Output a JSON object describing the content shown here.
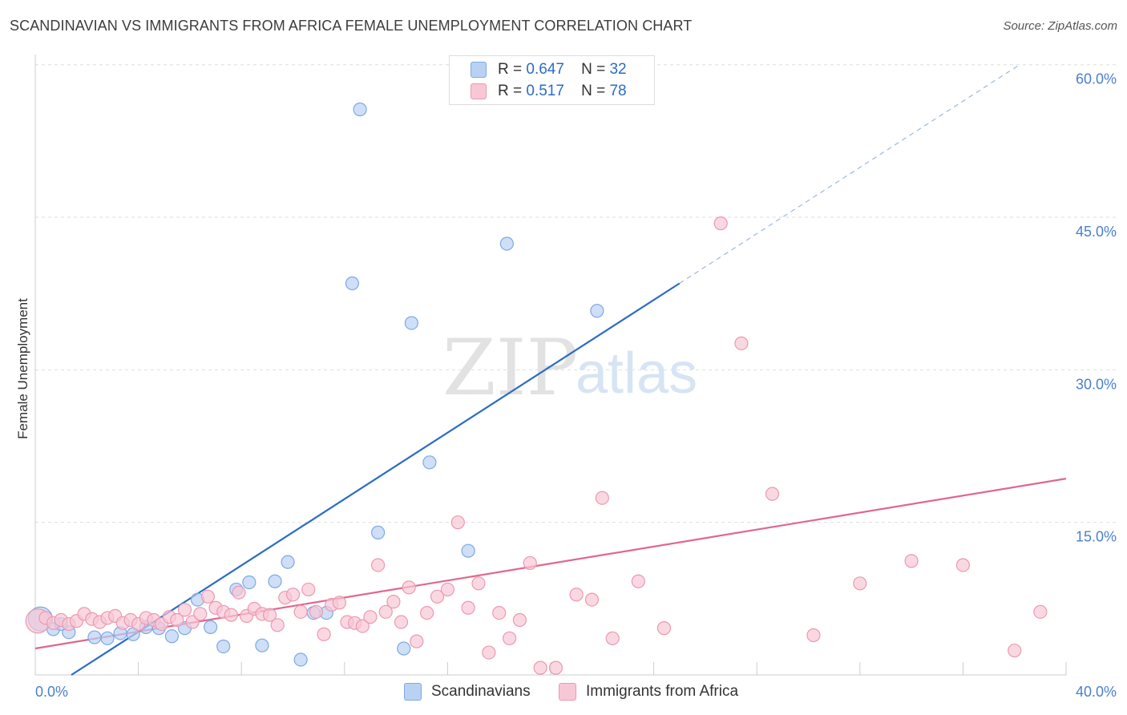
{
  "title": "SCANDINAVIAN VS IMMIGRANTS FROM AFRICA FEMALE UNEMPLOYMENT CORRELATION CHART",
  "source": "Source: ZipAtlas.com",
  "watermark": {
    "zip": "ZIP",
    "atlas": "atlas"
  },
  "colors": {
    "blue_fill": "#b9d2f3",
    "blue_stroke": "#7ea9e3",
    "blue_line": "#2b6cc4",
    "pink_fill": "#f8c7d6",
    "pink_stroke": "#ec98b2",
    "pink_line": "#e0678f",
    "grid": "#dedede",
    "tick_text": "#4a7fd0"
  },
  "legend": {
    "rows": [
      {
        "r_label": "R =",
        "r_value": "0.647",
        "n_label": "N =",
        "n_value": "32"
      },
      {
        "r_label": "R =",
        "r_value": "0.517",
        "n_label": "N =",
        "n_value": "78"
      }
    ]
  },
  "chart_data": {
    "type": "scatter",
    "title": "SCANDINAVIAN VS IMMIGRANTS FROM AFRICA FEMALE UNEMPLOYMENT CORRELATION CHART",
    "xlabel": "",
    "ylabel": "Female Unemployment",
    "xlim": [
      0,
      40
    ],
    "ylim": [
      0,
      61
    ],
    "x_tick_labels": [
      "0.0%",
      "40.0%"
    ],
    "y_tick_labels": [
      "15.0%",
      "30.0%",
      "45.0%",
      "60.0%"
    ],
    "y_ticks": [
      15,
      30,
      45,
      60
    ],
    "x_grid_ticks": [
      0,
      4,
      8,
      12,
      16,
      20,
      24,
      28,
      32,
      36,
      40
    ],
    "series": [
      {
        "name": "Scandinavians",
        "color": "#b9d2f3",
        "points": [
          [
            0.2,
            5.5
          ],
          [
            0.7,
            4.5
          ],
          [
            1.3,
            4.2
          ],
          [
            2.3,
            3.7
          ],
          [
            2.8,
            3.6
          ],
          [
            3.3,
            4.1
          ],
          [
            3.8,
            4.0
          ],
          [
            4.3,
            4.7
          ],
          [
            4.8,
            4.6
          ],
          [
            5.3,
            3.8
          ],
          [
            5.8,
            4.6
          ],
          [
            6.3,
            7.4
          ],
          [
            6.8,
            4.7
          ],
          [
            7.3,
            2.8
          ],
          [
            7.8,
            8.4
          ],
          [
            8.3,
            9.1
          ],
          [
            8.8,
            2.9
          ],
          [
            9.3,
            9.2
          ],
          [
            9.8,
            11.1
          ],
          [
            10.3,
            1.5
          ],
          [
            10.8,
            6.1
          ],
          [
            11.3,
            6.1
          ],
          [
            12.3,
            38.5
          ],
          [
            12.6,
            55.6
          ],
          [
            13.3,
            14.0
          ],
          [
            14.3,
            2.6
          ],
          [
            14.6,
            34.6
          ],
          [
            15.3,
            20.9
          ],
          [
            16.8,
            12.2
          ],
          [
            18.3,
            42.4
          ],
          [
            21.8,
            35.8
          ],
          [
            1.0,
            5.0
          ]
        ]
      },
      {
        "name": "Immigrants from Africa",
        "color": "#f8c7d6",
        "points": [
          [
            0.1,
            5.3
          ],
          [
            0.4,
            5.6
          ],
          [
            0.7,
            5.1
          ],
          [
            1.0,
            5.4
          ],
          [
            1.3,
            5.0
          ],
          [
            1.6,
            5.3
          ],
          [
            1.9,
            6.0
          ],
          [
            2.2,
            5.5
          ],
          [
            2.5,
            5.2
          ],
          [
            2.8,
            5.6
          ],
          [
            3.1,
            5.8
          ],
          [
            3.4,
            5.1
          ],
          [
            3.7,
            5.4
          ],
          [
            4.0,
            5.0
          ],
          [
            4.3,
            5.6
          ],
          [
            4.6,
            5.4
          ],
          [
            4.9,
            5.0
          ],
          [
            5.2,
            5.7
          ],
          [
            5.5,
            5.4
          ],
          [
            5.8,
            6.4
          ],
          [
            6.1,
            5.2
          ],
          [
            6.4,
            6.0
          ],
          [
            6.7,
            7.7
          ],
          [
            7.0,
            6.6
          ],
          [
            7.3,
            6.2
          ],
          [
            7.6,
            5.9
          ],
          [
            7.9,
            8.1
          ],
          [
            8.2,
            5.8
          ],
          [
            8.5,
            6.5
          ],
          [
            8.8,
            6.0
          ],
          [
            9.1,
            5.9
          ],
          [
            9.4,
            4.9
          ],
          [
            9.7,
            7.6
          ],
          [
            10.0,
            7.9
          ],
          [
            10.3,
            6.2
          ],
          [
            10.6,
            8.4
          ],
          [
            10.9,
            6.2
          ],
          [
            11.2,
            4.0
          ],
          [
            11.5,
            6.9
          ],
          [
            11.8,
            7.1
          ],
          [
            12.1,
            5.2
          ],
          [
            12.4,
            5.1
          ],
          [
            12.7,
            4.8
          ],
          [
            13.0,
            5.7
          ],
          [
            13.3,
            10.8
          ],
          [
            13.6,
            6.2
          ],
          [
            13.9,
            7.2
          ],
          [
            14.2,
            5.2
          ],
          [
            14.5,
            8.6
          ],
          [
            14.8,
            3.3
          ],
          [
            15.2,
            6.1
          ],
          [
            15.6,
            7.7
          ],
          [
            16.0,
            8.4
          ],
          [
            16.4,
            15.0
          ],
          [
            16.8,
            6.6
          ],
          [
            17.2,
            9.0
          ],
          [
            17.6,
            2.2
          ],
          [
            18.0,
            6.1
          ],
          [
            18.4,
            3.6
          ],
          [
            18.8,
            5.4
          ],
          [
            19.2,
            11.0
          ],
          [
            19.6,
            0.7
          ],
          [
            20.2,
            0.7
          ],
          [
            21.0,
            7.9
          ],
          [
            21.6,
            7.4
          ],
          [
            22.0,
            17.4
          ],
          [
            22.4,
            3.6
          ],
          [
            23.4,
            9.2
          ],
          [
            24.4,
            4.6
          ],
          [
            26.6,
            44.4
          ],
          [
            27.4,
            32.6
          ],
          [
            28.6,
            17.8
          ],
          [
            30.2,
            3.9
          ],
          [
            32.0,
            9.0
          ],
          [
            34.0,
            11.2
          ],
          [
            36.0,
            10.8
          ],
          [
            38.0,
            2.4
          ],
          [
            39.0,
            6.2
          ]
        ]
      }
    ],
    "trendlines": [
      {
        "series": "Scandinavians",
        "x_start": 1.4,
        "y_start": 0,
        "x_end": 25.0,
        "y_end": 38.5,
        "dashed_to_x": 38.2,
        "dashed_to_y": 60.0
      },
      {
        "series": "Immigrants from Africa",
        "x_start": 0,
        "y_start": 2.6,
        "x_end": 40.0,
        "y_end": 19.3
      }
    ]
  },
  "bottom_legend": {
    "items": [
      "Scandinavians",
      "Immigrants from Africa"
    ]
  }
}
